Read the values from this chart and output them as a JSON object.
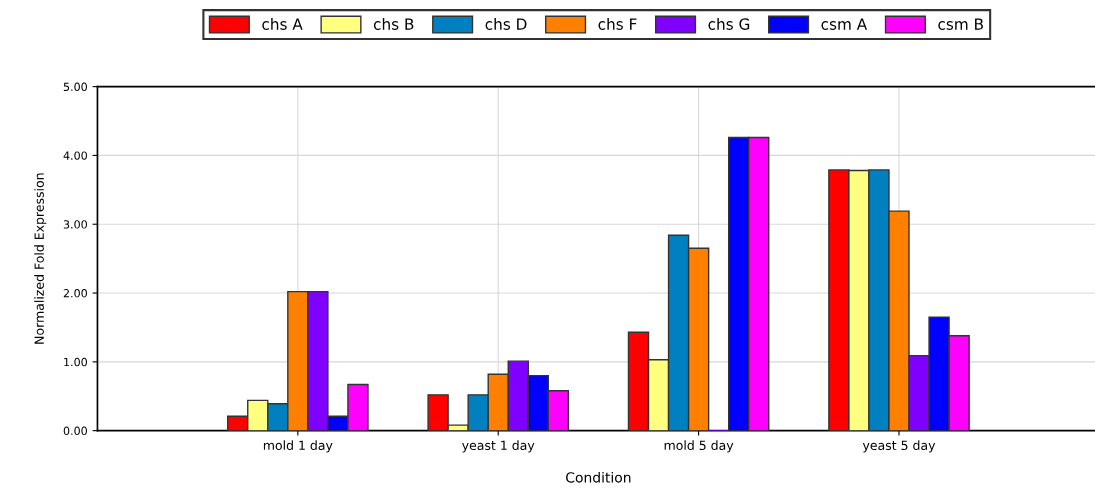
{
  "chart_data": {
    "type": "bar",
    "xlabel": "Condition",
    "ylabel": "Normalized Fold Expression",
    "categories": [
      "mold 1 day",
      "yeast 1 day",
      "mold 5 day",
      "yeast 5 day"
    ],
    "series": [
      {
        "name": "chs A",
        "color": "#ff0000",
        "values": [
          0.21,
          0.52,
          1.43,
          3.79
        ]
      },
      {
        "name": "chs B",
        "color": "#ffff80",
        "values": [
          0.44,
          0.08,
          1.03,
          3.78
        ]
      },
      {
        "name": "chs D",
        "color": "#0080c0",
        "values": [
          0.39,
          0.52,
          2.84,
          3.79
        ]
      },
      {
        "name": "chs F",
        "color": "#ff8000",
        "values": [
          2.02,
          0.82,
          2.65,
          3.19
        ]
      },
      {
        "name": "chs G",
        "color": "#8000ff",
        "values": [
          2.02,
          1.01,
          0.0,
          1.09
        ]
      },
      {
        "name": "csm A",
        "color": "#0000ff",
        "values": [
          0.21,
          0.8,
          4.26,
          1.65
        ]
      },
      {
        "name": "csm B",
        "color": "#ff00ff",
        "values": [
          0.67,
          0.58,
          4.26,
          1.38
        ]
      }
    ],
    "ylim": [
      0,
      5
    ],
    "yticks": [
      {
        "value": 0,
        "label": "0.00"
      },
      {
        "value": 1,
        "label": "1.00"
      },
      {
        "value": 2,
        "label": "2.00"
      },
      {
        "value": 3,
        "label": "3.00"
      },
      {
        "value": 4,
        "label": "4.00"
      },
      {
        "value": 5,
        "label": "5.00"
      }
    ],
    "grid": true,
    "legend": "top"
  }
}
